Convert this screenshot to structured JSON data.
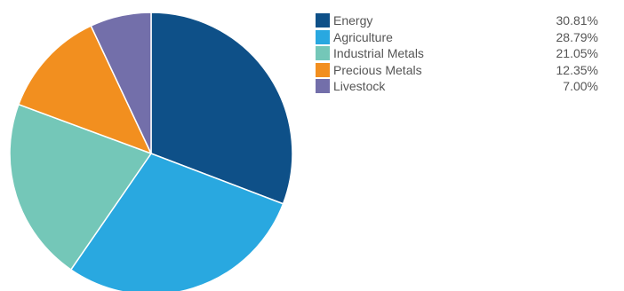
{
  "chart_data": {
    "type": "pie",
    "title": "",
    "legend_position": "right",
    "slices": [
      {
        "label": "Energy",
        "value": 30.81,
        "display": "30.81%",
        "color": "#0e5088"
      },
      {
        "label": "Agriculture",
        "value": 28.79,
        "display": "28.79%",
        "color": "#29a8e0"
      },
      {
        "label": "Industrial Metals",
        "value": 21.05,
        "display": "21.05%",
        "color": "#74c7b8"
      },
      {
        "label": "Precious Metals",
        "value": 12.35,
        "display": "12.35%",
        "color": "#f28f1f"
      },
      {
        "label": "Livestock",
        "value": 7.0,
        "display": "7.00%",
        "color": "#736faa"
      }
    ]
  }
}
